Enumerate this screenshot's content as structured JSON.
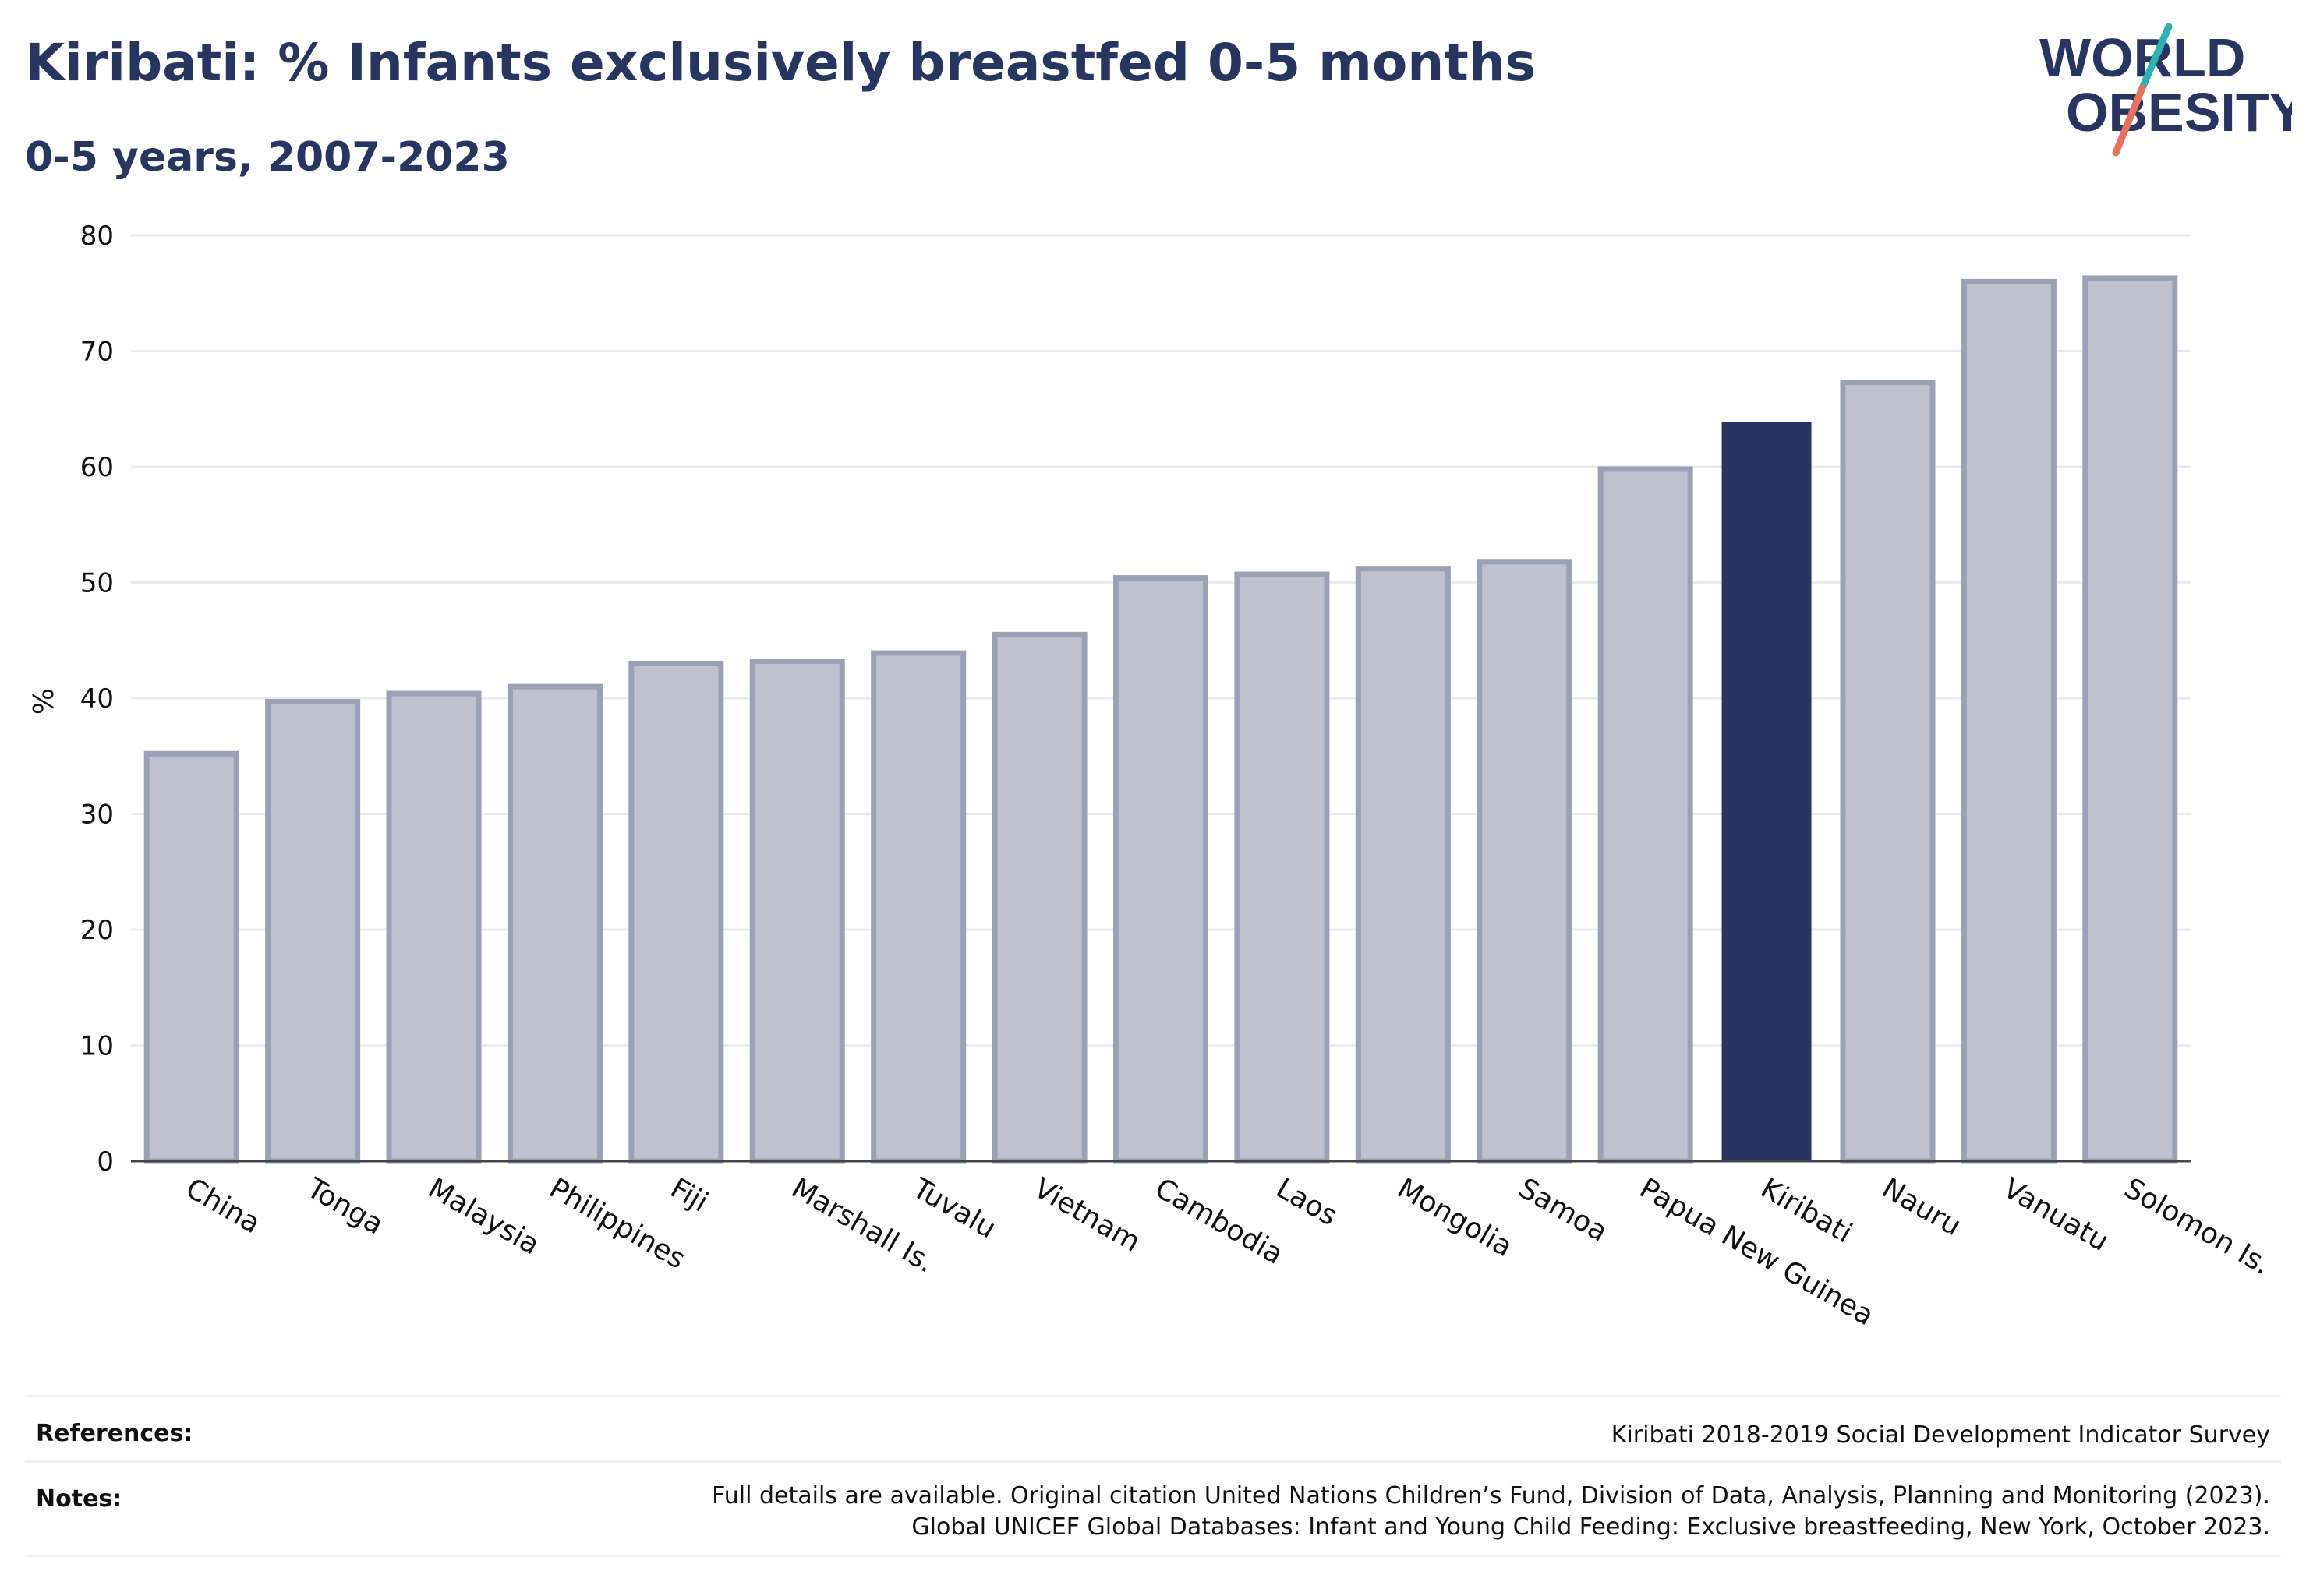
{
  "header": {
    "title": "Kiribati: % Infants exclusively breastfed 0-5 months",
    "subtitle": "0-5 years, 2007-2023"
  },
  "logo": {
    "line1": "WORLD",
    "line2": "OBESITY",
    "accent_teal": "#2ab3b1",
    "accent_coral": "#e9705d"
  },
  "chart_data": {
    "type": "bar",
    "title": "Kiribati: % Infants exclusively breastfed 0-5 months",
    "subtitle": "0-5 years, 2007-2023",
    "xlabel": "",
    "ylabel": "%",
    "ylim": [
      0,
      80
    ],
    "yticks": [
      0,
      10,
      20,
      30,
      40,
      50,
      60,
      70,
      80
    ],
    "grid": true,
    "highlight": "Kiribati",
    "colors": {
      "highlight": "#283560",
      "other": "#bfc2ce",
      "other_border": "#9aa0b5",
      "grid": "#e9ebf0"
    },
    "categories": [
      "China",
      "Tonga",
      "Malaysia",
      "Philippines",
      "Fiji",
      "Marshall Is.",
      "Tuvalu",
      "Vietnam",
      "Cambodia",
      "Laos",
      "Mongolia",
      "Samoa",
      "Papua New Guinea",
      "Kiribati",
      "Nauru",
      "Vanuatu",
      "Solomon Is."
    ],
    "values": [
      35.2,
      39.7,
      40.4,
      41.0,
      43.0,
      43.2,
      43.9,
      45.5,
      50.4,
      50.7,
      51.2,
      51.8,
      59.8,
      63.9,
      67.3,
      76.0,
      76.3
    ]
  },
  "footer": {
    "references_label": "References:",
    "references_text": "Kiribati 2018-2019 Social Development Indicator Survey",
    "notes_label": "Notes:",
    "notes_line1": "Full details are available. Original citation United Nations Children’s Fund, Division of Data, Analysis, Planning and Monitoring (2023).",
    "notes_line2": "Global UNICEF Global Databases: Infant and Young Child Feeding: Exclusive breastfeeding, New York, October 2023."
  }
}
